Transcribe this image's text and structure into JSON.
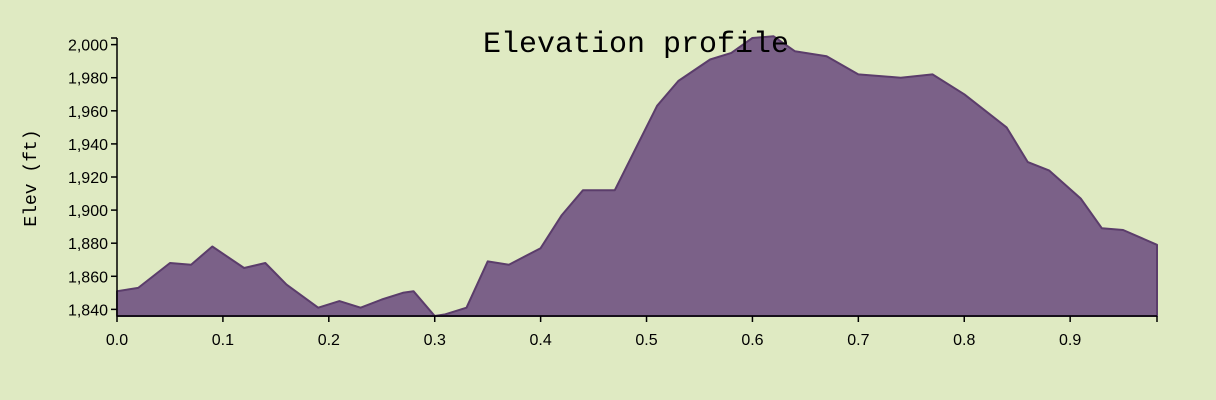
{
  "chart_data": {
    "type": "area",
    "title": "Elevation profile",
    "xlabel": "",
    "ylabel": "Elev (ft)",
    "xlim": [
      0,
      0.982
    ],
    "ylim": [
      1836,
      2004
    ],
    "x_ticks": [
      0.0,
      0.1,
      0.2,
      0.3,
      0.4,
      0.5,
      0.6,
      0.7,
      0.8,
      0.9
    ],
    "x_tick_labels": [
      "0.0",
      "0.1",
      "0.2",
      "0.3",
      "0.4",
      "0.5",
      "0.6",
      "0.7",
      "0.8",
      "0.9"
    ],
    "y_ticks": [
      1840,
      1860,
      1880,
      1900,
      1920,
      1940,
      1960,
      1980,
      2000
    ],
    "y_tick_labels": [
      "1,840",
      "1,860",
      "1,880",
      "1,900",
      "1,920",
      "1,940",
      "1,960",
      "1,980",
      "2,000"
    ],
    "fill_color": "#7b6188",
    "stroke_color": "#5b3d6b",
    "background_color": "#dfeac2",
    "grid": false,
    "x": [
      0.0,
      0.02,
      0.05,
      0.07,
      0.09,
      0.12,
      0.14,
      0.16,
      0.19,
      0.21,
      0.23,
      0.25,
      0.27,
      0.28,
      0.3,
      0.31,
      0.33,
      0.35,
      0.37,
      0.4,
      0.42,
      0.44,
      0.47,
      0.51,
      0.53,
      0.56,
      0.58,
      0.6,
      0.62,
      0.64,
      0.67,
      0.7,
      0.74,
      0.77,
      0.8,
      0.84,
      0.86,
      0.88,
      0.91,
      0.93,
      0.95,
      0.982
    ],
    "y": [
      1851,
      1853,
      1868,
      1867,
      1878,
      1865,
      1868,
      1855,
      1841,
      1845,
      1841,
      1846,
      1850,
      1851,
      1836,
      1837,
      1841,
      1869,
      1867,
      1877,
      1897,
      1912,
      1912,
      1963,
      1978,
      1991,
      1995,
      2004,
      2005,
      1996,
      1993,
      1982,
      1980,
      1982,
      1970,
      1950,
      1929,
      1924,
      1907,
      1889,
      1888,
      1879
    ]
  }
}
